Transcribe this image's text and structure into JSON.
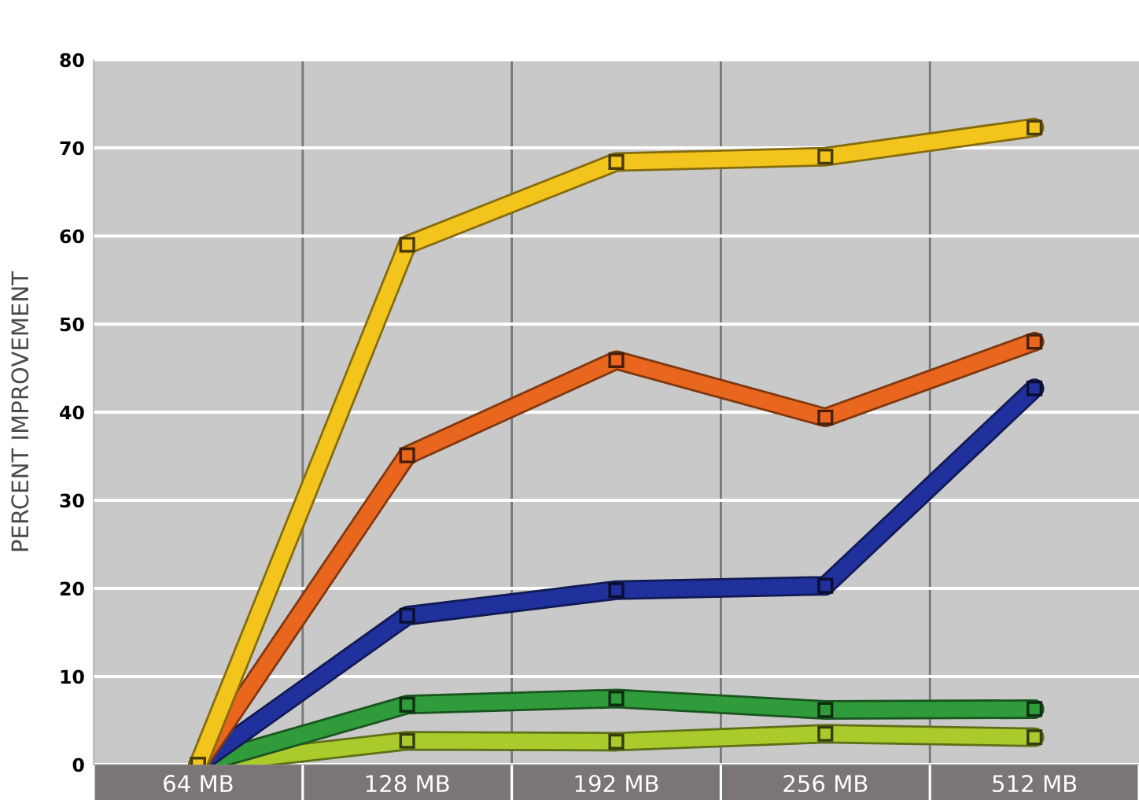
{
  "chart_data": {
    "type": "line",
    "ylabel": "PERCENT IMPROVEMENT",
    "categories": [
      "64 MB",
      "128 MB",
      "192 MB",
      "256 MB",
      "512 MB"
    ],
    "series": [
      {
        "color": "#f2c41c",
        "values": [
          0,
          59,
          68.4,
          69,
          72.3
        ]
      },
      {
        "color": "#e8661e",
        "values": [
          0,
          35.1,
          45.9,
          39.4,
          48
        ]
      },
      {
        "color": "#20309c",
        "values": [
          0,
          16.9,
          19.8,
          20.3,
          42.7
        ]
      },
      {
        "color": "#2f9b3a",
        "values": [
          0,
          6.8,
          7.5,
          6.2,
          6.3
        ]
      },
      {
        "color": "#aacb2c",
        "values": [
          0,
          2.7,
          2.6,
          3.5,
          3.1
        ]
      }
    ],
    "ylim": [
      0,
      80
    ],
    "yticks": [
      0,
      10,
      20,
      30,
      40,
      50,
      60,
      70,
      80
    ],
    "grid": "y",
    "marker": "square",
    "line_style": "solid"
  }
}
